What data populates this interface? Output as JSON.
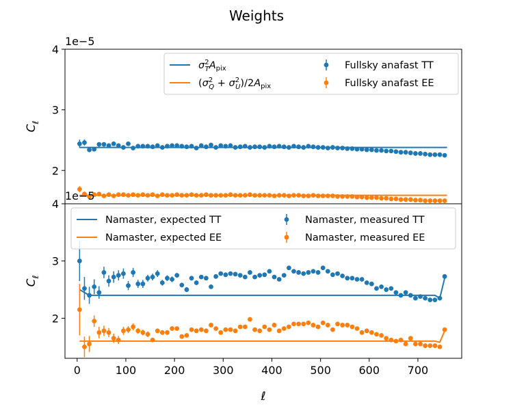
{
  "title": "Weights",
  "xlabel": "ℓ",
  "chart_data": [
    {
      "type": "line",
      "ylabel": "C",
      "ylabel_sub": "ℓ",
      "offset_text": "1e−5",
      "ylim": [
        1.45,
        4.0
      ],
      "xlim": [
        -25,
        790
      ],
      "yticks": [
        2,
        3,
        4
      ],
      "legend_position": "upper right",
      "legend_ncol": 2,
      "series": [
        {
          "name": "σ²_T A_pix",
          "kind": "line",
          "color": "#1f77b4",
          "x": [
            5,
            15,
            25,
            760
          ],
          "y": [
            2.38,
            2.38,
            2.38,
            2.38
          ]
        },
        {
          "name": "(σ²_Q + σ²_U)/2A_pix",
          "kind": "line",
          "color": "#ff7f0e",
          "x": [
            5,
            15,
            25,
            760
          ],
          "y": [
            1.59,
            1.59,
            1.59,
            1.59
          ]
        },
        {
          "name": "Fullsky anafast TT",
          "kind": "errorbar",
          "color": "#1f77b4",
          "x": [
            5,
            15,
            25,
            35,
            45,
            55,
            65,
            75,
            85,
            95,
            105,
            115,
            125,
            135,
            145,
            155,
            165,
            175,
            185,
            195,
            205,
            215,
            225,
            235,
            245,
            255,
            265,
            275,
            285,
            295,
            305,
            315,
            325,
            335,
            345,
            355,
            365,
            375,
            385,
            395,
            405,
            415,
            425,
            435,
            445,
            455,
            465,
            475,
            485,
            495,
            505,
            515,
            525,
            535,
            545,
            555,
            565,
            575,
            585,
            595,
            605,
            615,
            625,
            635,
            645,
            655,
            665,
            675,
            685,
            695,
            705,
            715,
            725,
            735,
            745,
            755
          ],
          "y": [
            2.44,
            2.46,
            2.34,
            2.35,
            2.43,
            2.43,
            2.41,
            2.44,
            2.41,
            2.38,
            2.44,
            2.37,
            2.4,
            2.4,
            2.4,
            2.39,
            2.41,
            2.38,
            2.4,
            2.41,
            2.41,
            2.4,
            2.39,
            2.4,
            2.37,
            2.41,
            2.39,
            2.42,
            2.38,
            2.41,
            2.4,
            2.41,
            2.38,
            2.39,
            2.4,
            2.38,
            2.39,
            2.39,
            2.38,
            2.4,
            2.39,
            2.4,
            2.39,
            2.38,
            2.4,
            2.39,
            2.38,
            2.4,
            2.39,
            2.38,
            2.38,
            2.37,
            2.38,
            2.37,
            2.37,
            2.36,
            2.36,
            2.35,
            2.35,
            2.34,
            2.34,
            2.33,
            2.33,
            2.32,
            2.32,
            2.31,
            2.3,
            2.3,
            2.29,
            2.28,
            2.28,
            2.27,
            2.26,
            2.26,
            2.26,
            2.25
          ],
          "err": [
            0.07,
            0.05,
            0.04,
            0.03,
            0.03,
            0.03,
            0.02,
            0.02,
            0.02,
            0.02,
            0.02,
            0.02,
            0.02,
            0.02,
            0.02,
            0.02,
            0.02,
            0.02,
            0.02,
            0.02,
            0.01,
            0.01,
            0.01,
            0.01,
            0.01,
            0.01,
            0.01,
            0.01,
            0.01,
            0.01,
            0.01,
            0.01,
            0.01,
            0.01,
            0.01,
            0.01,
            0.01,
            0.01,
            0.01,
            0.01,
            0.01,
            0.01,
            0.01,
            0.01,
            0.01,
            0.01,
            0.01,
            0.01,
            0.01,
            0.01,
            0.01,
            0.01,
            0.01,
            0.01,
            0.01,
            0.01,
            0.01,
            0.01,
            0.01,
            0.01,
            0.01,
            0.01,
            0.01,
            0.01,
            0.01,
            0.01,
            0.01,
            0.01,
            0.01,
            0.01,
            0.01,
            0.01,
            0.01,
            0.01,
            0.01,
            0.01
          ]
        },
        {
          "name": "Fullsky anafast EE",
          "kind": "errorbar",
          "color": "#ff7f0e",
          "x": [
            5,
            15,
            25,
            35,
            45,
            55,
            65,
            75,
            85,
            95,
            105,
            115,
            125,
            135,
            145,
            155,
            165,
            175,
            185,
            195,
            205,
            215,
            225,
            235,
            245,
            255,
            265,
            275,
            285,
            295,
            305,
            315,
            325,
            335,
            345,
            355,
            365,
            375,
            385,
            395,
            405,
            415,
            425,
            435,
            445,
            455,
            465,
            475,
            485,
            495,
            505,
            515,
            525,
            535,
            545,
            555,
            565,
            575,
            585,
            595,
            605,
            615,
            625,
            635,
            645,
            655,
            665,
            675,
            685,
            695,
            705,
            715,
            725,
            735,
            745,
            755
          ],
          "y": [
            1.69,
            1.61,
            1.57,
            1.6,
            1.61,
            1.58,
            1.6,
            1.58,
            1.6,
            1.6,
            1.59,
            1.6,
            1.59,
            1.6,
            1.59,
            1.6,
            1.58,
            1.6,
            1.59,
            1.59,
            1.6,
            1.59,
            1.59,
            1.6,
            1.59,
            1.59,
            1.6,
            1.59,
            1.59,
            1.59,
            1.59,
            1.6,
            1.59,
            1.59,
            1.59,
            1.6,
            1.59,
            1.59,
            1.59,
            1.59,
            1.58,
            1.59,
            1.59,
            1.58,
            1.59,
            1.59,
            1.58,
            1.58,
            1.59,
            1.58,
            1.58,
            1.58,
            1.58,
            1.57,
            1.57,
            1.57,
            1.57,
            1.56,
            1.56,
            1.55,
            1.55,
            1.55,
            1.54,
            1.54,
            1.53,
            1.53,
            1.52,
            1.52,
            1.52,
            1.51,
            1.51,
            1.5,
            1.5,
            1.5,
            1.5,
            1.5
          ],
          "err": [
            0.05,
            0.04,
            0.03,
            0.02,
            0.02,
            0.02,
            0.01,
            0.01,
            0.01,
            0.01,
            0.01,
            0.01,
            0.01,
            0.01,
            0.01,
            0.01,
            0.01,
            0.01,
            0.01,
            0.01,
            0.01,
            0.01,
            0.01,
            0.01,
            0.01,
            0.01,
            0.01,
            0.01,
            0.01,
            0.01,
            0.01,
            0.01,
            0.01,
            0.01,
            0.01,
            0.01,
            0.01,
            0.01,
            0.01,
            0.01,
            0.01,
            0.01,
            0.01,
            0.01,
            0.01,
            0.01,
            0.01,
            0.01,
            0.01,
            0.01,
            0.01,
            0.01,
            0.01,
            0.01,
            0.01,
            0.01,
            0.01,
            0.01,
            0.01,
            0.01,
            0.01,
            0.01,
            0.01,
            0.01,
            0.01,
            0.01,
            0.01,
            0.01,
            0.01,
            0.01,
            0.01,
            0.01,
            0.01,
            0.01,
            0.01,
            0.01
          ]
        }
      ]
    },
    {
      "type": "line",
      "ylabel": "C",
      "ylabel_sub": "ℓ",
      "offset_text": "1e−5",
      "ylim": [
        1.3,
        4.0
      ],
      "xlim": [
        -25,
        790
      ],
      "xticks": [
        0,
        100,
        200,
        300,
        400,
        500,
        600,
        700
      ],
      "yticks": [
        2,
        3,
        4
      ],
      "legend_position": "upper center",
      "legend_ncol": 2,
      "series": [
        {
          "name": "Namaster, expected TT",
          "kind": "line",
          "color": "#1f77b4",
          "x": [
            5,
            15,
            25,
            40,
            60,
            100,
            200,
            300,
            400,
            500,
            600,
            700,
            735,
            745,
            755
          ],
          "y": [
            2.5,
            2.45,
            2.4,
            2.4,
            2.4,
            2.4,
            2.4,
            2.4,
            2.4,
            2.4,
            2.4,
            2.4,
            2.4,
            2.35,
            2.7
          ]
        },
        {
          "name": "Namaster, expected EE",
          "kind": "line",
          "color": "#ff7f0e",
          "x": [
            5,
            15,
            25,
            40,
            60,
            100,
            200,
            300,
            400,
            500,
            600,
            700,
            735,
            745,
            755
          ],
          "y": [
            1.6,
            1.6,
            1.6,
            1.6,
            1.6,
            1.6,
            1.6,
            1.6,
            1.6,
            1.6,
            1.6,
            1.6,
            1.6,
            1.58,
            1.78
          ]
        },
        {
          "name": "Namaster, measured TT",
          "kind": "errorbar",
          "color": "#1f77b4",
          "x": [
            5,
            15,
            25,
            35,
            45,
            55,
            65,
            75,
            85,
            95,
            105,
            115,
            125,
            135,
            145,
            155,
            165,
            175,
            185,
            195,
            205,
            215,
            225,
            235,
            245,
            255,
            265,
            275,
            285,
            295,
            305,
            315,
            325,
            335,
            345,
            355,
            365,
            375,
            385,
            395,
            405,
            415,
            425,
            435,
            445,
            455,
            465,
            475,
            485,
            495,
            505,
            515,
            525,
            535,
            545,
            555,
            565,
            575,
            585,
            595,
            605,
            615,
            625,
            635,
            645,
            655,
            665,
            675,
            685,
            695,
            705,
            715,
            725,
            735,
            745,
            755
          ],
          "y": [
            3.0,
            2.52,
            2.4,
            2.55,
            2.45,
            2.8,
            2.65,
            2.72,
            2.75,
            2.78,
            2.57,
            2.8,
            2.6,
            2.6,
            2.7,
            2.72,
            2.78,
            2.62,
            2.7,
            2.68,
            2.75,
            2.58,
            2.5,
            2.7,
            2.62,
            2.72,
            2.7,
            2.55,
            2.73,
            2.78,
            2.76,
            2.78,
            2.77,
            2.75,
            2.72,
            2.8,
            2.72,
            2.75,
            2.76,
            2.82,
            2.72,
            2.68,
            2.75,
            2.88,
            2.82,
            2.8,
            2.78,
            2.8,
            2.82,
            2.8,
            2.88,
            2.82,
            2.76,
            2.78,
            2.74,
            2.7,
            2.7,
            2.68,
            2.68,
            2.62,
            2.6,
            2.52,
            2.55,
            2.5,
            2.52,
            2.45,
            2.4,
            2.45,
            2.4,
            2.35,
            2.38,
            2.35,
            2.32,
            2.32,
            2.35,
            2.73
          ],
          "err": [
            0.35,
            0.2,
            0.15,
            0.13,
            0.11,
            0.1,
            0.1,
            0.1,
            0.09,
            0.09,
            0.08,
            0.08,
            0.07,
            0.07,
            0.06,
            0.06,
            0.06,
            0.05,
            0.05,
            0.05,
            0.04,
            0.04,
            0.04,
            0.04,
            0.04,
            0.03,
            0.03,
            0.03,
            0.03,
            0.03,
            0.02,
            0.02,
            0.02,
            0.02,
            0.02,
            0.02,
            0.02,
            0.02,
            0.02,
            0.02,
            0.02,
            0.02,
            0.02,
            0.02,
            0.02,
            0.02,
            0.02,
            0.02,
            0.02,
            0.02,
            0.02,
            0.02,
            0.02,
            0.02,
            0.02,
            0.02,
            0.02,
            0.02,
            0.02,
            0.02,
            0.02,
            0.02,
            0.02,
            0.02,
            0.02,
            0.02,
            0.02,
            0.02,
            0.02,
            0.02,
            0.02,
            0.02,
            0.02,
            0.02,
            0.02,
            0.02
          ]
        },
        {
          "name": "Namaster, measured EE",
          "kind": "errorbar",
          "color": "#ff7f0e",
          "x": [
            5,
            15,
            25,
            35,
            45,
            55,
            65,
            75,
            85,
            95,
            105,
            115,
            125,
            135,
            145,
            155,
            165,
            175,
            185,
            195,
            205,
            215,
            225,
            235,
            245,
            255,
            265,
            275,
            285,
            295,
            305,
            315,
            325,
            335,
            345,
            355,
            365,
            375,
            385,
            395,
            405,
            415,
            425,
            435,
            445,
            455,
            465,
            475,
            485,
            495,
            505,
            515,
            525,
            535,
            545,
            555,
            565,
            575,
            585,
            595,
            605,
            615,
            625,
            635,
            645,
            655,
            665,
            675,
            685,
            695,
            705,
            715,
            725,
            735,
            745,
            755
          ],
          "y": [
            2.15,
            1.5,
            1.55,
            1.95,
            1.75,
            1.78,
            1.75,
            1.65,
            1.62,
            1.78,
            1.8,
            1.85,
            1.78,
            1.75,
            1.72,
            1.62,
            1.78,
            1.75,
            1.75,
            1.82,
            1.82,
            1.68,
            1.7,
            1.8,
            1.78,
            1.8,
            1.78,
            1.88,
            1.82,
            1.75,
            1.8,
            1.8,
            1.78,
            1.85,
            1.85,
            1.98,
            1.8,
            1.78,
            1.85,
            1.8,
            1.88,
            1.78,
            1.82,
            1.85,
            1.9,
            1.9,
            1.9,
            1.92,
            1.88,
            1.85,
            1.92,
            1.88,
            1.8,
            1.9,
            1.88,
            1.88,
            1.85,
            1.82,
            1.75,
            1.78,
            1.75,
            1.72,
            1.7,
            1.65,
            1.62,
            1.6,
            1.62,
            1.55,
            1.65,
            1.55,
            1.55,
            1.52,
            1.52,
            1.52,
            1.5,
            1.8
          ],
          "err": [
            0.45,
            0.18,
            0.14,
            0.1,
            0.1,
            0.09,
            0.08,
            0.08,
            0.07,
            0.07,
            0.06,
            0.06,
            0.05,
            0.05,
            0.05,
            0.04,
            0.04,
            0.04,
            0.04,
            0.04,
            0.03,
            0.03,
            0.03,
            0.03,
            0.03,
            0.03,
            0.03,
            0.03,
            0.02,
            0.02,
            0.02,
            0.02,
            0.02,
            0.02,
            0.02,
            0.02,
            0.02,
            0.02,
            0.02,
            0.02,
            0.02,
            0.02,
            0.02,
            0.02,
            0.02,
            0.02,
            0.02,
            0.02,
            0.02,
            0.02,
            0.02,
            0.02,
            0.02,
            0.02,
            0.02,
            0.02,
            0.02,
            0.02,
            0.02,
            0.02,
            0.02,
            0.02,
            0.02,
            0.02,
            0.02,
            0.02,
            0.02,
            0.02,
            0.02,
            0.02,
            0.02,
            0.02,
            0.02,
            0.02,
            0.02,
            0.02
          ]
        }
      ]
    }
  ]
}
